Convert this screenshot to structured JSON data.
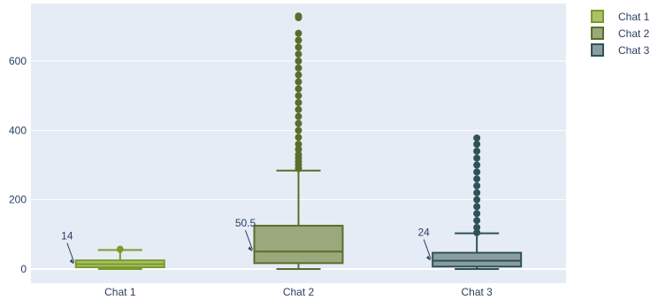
{
  "chart_data": {
    "type": "box",
    "categories": [
      "Chat 1",
      "Chat 2",
      "Chat 3"
    ],
    "yticks": [
      0,
      200,
      400,
      600
    ],
    "ylim": [
      -40,
      750
    ],
    "grid": true,
    "legend_placement": "top-right",
    "series": [
      {
        "name": "Chat 1",
        "color": "#7a9a2a",
        "fill": "#a9c26a",
        "min": 0,
        "q1": 5,
        "median": 14,
        "q3": 25,
        "upper_fence": 55,
        "max": 57,
        "outliers": [
          57
        ],
        "annotation": "14"
      },
      {
        "name": "Chat 2",
        "color": "#5a6e2c",
        "fill": "#9aa87c",
        "min": 0,
        "q1": 17,
        "median": 50.5,
        "q3": 125,
        "upper_fence": 284,
        "max": 730,
        "outliers": [
          290,
          300,
          310,
          320,
          330,
          345,
          360,
          380,
          400,
          420,
          440,
          460,
          480,
          500,
          520,
          540,
          560,
          580,
          600,
          620,
          640,
          660,
          680,
          725,
          730
        ],
        "annotation": "50.5"
      },
      {
        "name": "Chat 3",
        "color": "#2f5257",
        "fill": "#8a9da0",
        "min": 0,
        "q1": 7,
        "median": 24,
        "q3": 47,
        "upper_fence": 103,
        "max": 378,
        "outliers": [
          105,
          120,
          140,
          160,
          180,
          200,
          220,
          240,
          260,
          280,
          300,
          320,
          340,
          360,
          378
        ],
        "annotation": "24"
      }
    ]
  }
}
